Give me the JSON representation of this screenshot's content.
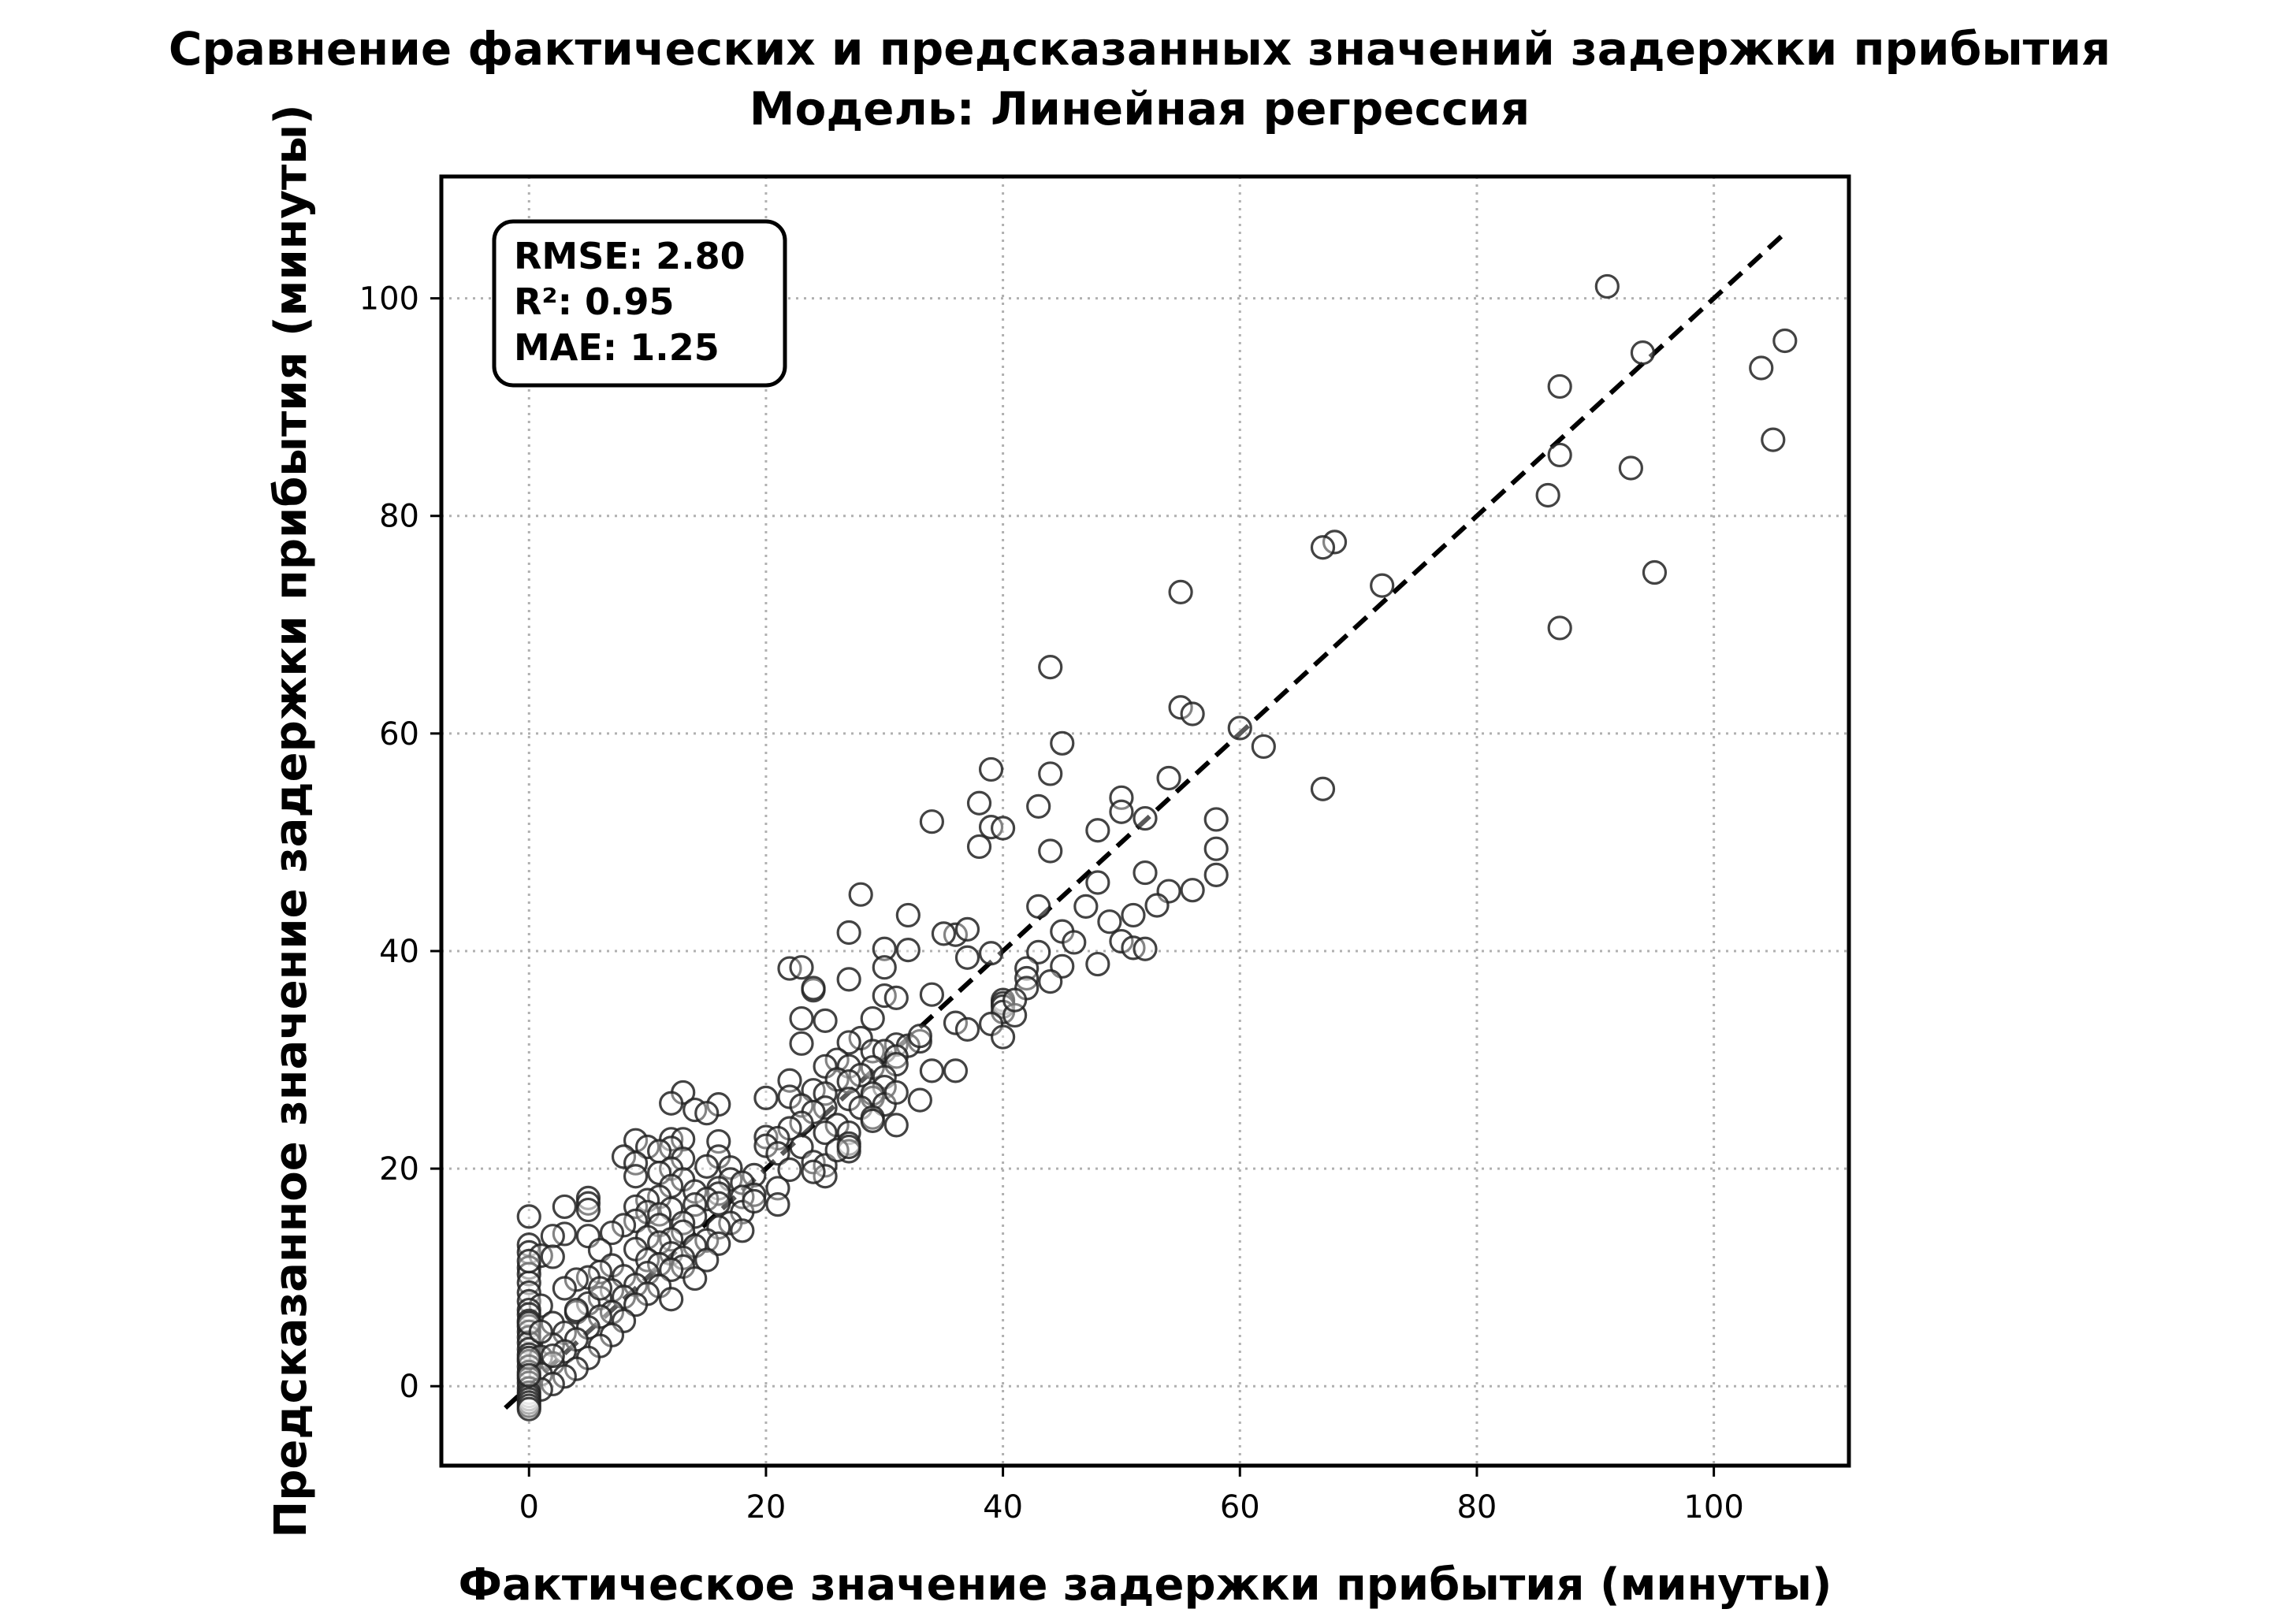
{
  "chart_data": {
    "type": "scatter",
    "title": "Сравнение фактических и предсказанных значений задержки прибытия",
    "subtitle": "Модель: Линейная регрессия",
    "xlabel": "Фактическое значение задержки прибытия (минуты)",
    "ylabel": "Предсказанное значение задержки прибытия (минуты)",
    "xlim": [
      -7.4,
      111.4
    ],
    "ylim": [
      -7.3,
      111.2
    ],
    "xticks": [
      0,
      20,
      40,
      60,
      80,
      100
    ],
    "yticks": [
      0,
      20,
      40,
      60,
      80,
      100
    ],
    "xtick_labels": [
      "0",
      "20",
      "40",
      "60",
      "80",
      "100"
    ],
    "ytick_labels": [
      "0",
      "20",
      "40",
      "60",
      "80",
      "100"
    ],
    "grid": true,
    "reference_line": {
      "style": "dashed",
      "color": "#000000",
      "x": [
        -2,
        106
      ],
      "y": [
        -2,
        106
      ]
    },
    "marker": {
      "shape": "circle",
      "fill": "none",
      "edge_color": "#222222"
    },
    "stats_box": {
      "position": "top-left",
      "lines": [
        "RMSE: 2.80",
        "R²: 0.95",
        "MAE: 1.25"
      ]
    },
    "points": [
      [
        91,
        101.1
      ],
      [
        94,
        95.0
      ],
      [
        106,
        96.1
      ],
      [
        104,
        93.6
      ],
      [
        87,
        91.9
      ],
      [
        87,
        85.6
      ],
      [
        105,
        87.0
      ],
      [
        93,
        84.4
      ],
      [
        86,
        81.9
      ],
      [
        95,
        74.8
      ],
      [
        68,
        77.6
      ],
      [
        67,
        77.1
      ],
      [
        72,
        73.6
      ],
      [
        55,
        73.0
      ],
      [
        87,
        69.7
      ],
      [
        44,
        66.1
      ],
      [
        55,
        62.4
      ],
      [
        56,
        61.8
      ],
      [
        60,
        60.5
      ],
      [
        62,
        58.8
      ],
      [
        45,
        59.1
      ],
      [
        39,
        56.7
      ],
      [
        44,
        56.3
      ],
      [
        54,
        55.9
      ],
      [
        67,
        54.9
      ],
      [
        38,
        53.6
      ],
      [
        43,
        53.3
      ],
      [
        50,
        54.1
      ],
      [
        50,
        52.8
      ],
      [
        52,
        52.2
      ],
      [
        58,
        52.1
      ],
      [
        34,
        51.9
      ],
      [
        39,
        51.4
      ],
      [
        40,
        51.3
      ],
      [
        48,
        51.1
      ],
      [
        44,
        49.2
      ],
      [
        38,
        49.6
      ],
      [
        58,
        49.4
      ],
      [
        52,
        47.2
      ],
      [
        58,
        47.0
      ],
      [
        48,
        46.3
      ],
      [
        54,
        45.5
      ],
      [
        56,
        45.6
      ],
      [
        28,
        45.2
      ],
      [
        53,
        44.2
      ],
      [
        43,
        44.1
      ],
      [
        47,
        44.1
      ],
      [
        51,
        43.3
      ],
      [
        32,
        43.3
      ],
      [
        49,
        42.7
      ],
      [
        27,
        41.7
      ],
      [
        36,
        41.5
      ],
      [
        37,
        42.0
      ],
      [
        45,
        41.8
      ],
      [
        46,
        40.8
      ],
      [
        50,
        40.9
      ],
      [
        51,
        40.3
      ],
      [
        52,
        40.2
      ],
      [
        30,
        40.2
      ],
      [
        32,
        40.1
      ],
      [
        39,
        39.8
      ],
      [
        43,
        39.9
      ],
      [
        37,
        39.4
      ],
      [
        45,
        38.6
      ],
      [
        48,
        38.8
      ],
      [
        42,
        38.4
      ],
      [
        22,
        38.4
      ],
      [
        23,
        38.5
      ],
      [
        30,
        38.5
      ],
      [
        42,
        37.5
      ],
      [
        27,
        37.4
      ],
      [
        44,
        37.2
      ],
      [
        24,
        36.4
      ],
      [
        24,
        36.6
      ],
      [
        42,
        36.6
      ],
      [
        30,
        35.9
      ],
      [
        34,
        36.0
      ],
      [
        31,
        35.7
      ],
      [
        40,
        35.5
      ],
      [
        40,
        35.2
      ],
      [
        40,
        34.9
      ],
      [
        40,
        34.4
      ],
      [
        41,
        34.1
      ],
      [
        29,
        33.8
      ],
      [
        23,
        33.8
      ],
      [
        25,
        33.6
      ],
      [
        36,
        33.4
      ],
      [
        39,
        33.3
      ],
      [
        37,
        32.8
      ],
      [
        40,
        32.1
      ],
      [
        28,
        32.0
      ],
      [
        33,
        31.7
      ],
      [
        23,
        31.5
      ],
      [
        27,
        31.6
      ],
      [
        31,
        31.4
      ],
      [
        32,
        31.3
      ],
      [
        29,
        30.8
      ],
      [
        30,
        30.8
      ],
      [
        31,
        30.3
      ],
      [
        26,
        30.0
      ],
      [
        27,
        29.4
      ],
      [
        31,
        29.6
      ],
      [
        25,
        29.4
      ],
      [
        29,
        29.3
      ],
      [
        34,
        29.0
      ],
      [
        36,
        29.0
      ],
      [
        28,
        28.6
      ],
      [
        30,
        28.4
      ],
      [
        22,
        28.1
      ],
      [
        26,
        28.2
      ],
      [
        27,
        28.0
      ],
      [
        30,
        27.5
      ],
      [
        13,
        27.0
      ],
      [
        24,
        27.2
      ],
      [
        22,
        26.6
      ],
      [
        25,
        26.9
      ],
      [
        20,
        26.5
      ],
      [
        29,
        26.5
      ],
      [
        29,
        26.9
      ],
      [
        33,
        26.3
      ],
      [
        27,
        26.4
      ],
      [
        12,
        26.0
      ],
      [
        16,
        25.9
      ],
      [
        30,
        25.9
      ],
      [
        23,
        25.8
      ],
      [
        25,
        25.6
      ],
      [
        28,
        25.6
      ],
      [
        14,
        25.4
      ],
      [
        15,
        25.1
      ],
      [
        24,
        25.2
      ],
      [
        29,
        24.7
      ],
      [
        29,
        24.4
      ],
      [
        31,
        24.0
      ],
      [
        23,
        24.2
      ],
      [
        26,
        24.0
      ],
      [
        22,
        23.7
      ],
      [
        25,
        23.3
      ],
      [
        27,
        23.3
      ],
      [
        20,
        22.9
      ],
      [
        21,
        22.8
      ],
      [
        12,
        22.7
      ],
      [
        9,
        22.6
      ],
      [
        13,
        22.7
      ],
      [
        16,
        22.5
      ],
      [
        20,
        22.1
      ],
      [
        27,
        22.3
      ],
      [
        10,
        22.0
      ],
      [
        12,
        21.9
      ],
      [
        23,
        22.0
      ],
      [
        11,
        21.6
      ],
      [
        27,
        21.6
      ],
      [
        21,
        21.4
      ],
      [
        8,
        21.1
      ],
      [
        16,
        21.1
      ],
      [
        13,
        20.9
      ],
      [
        24,
        20.6
      ],
      [
        25,
        20.3
      ],
      [
        9,
        20.5
      ],
      [
        12,
        20.0
      ],
      [
        15,
        20.2
      ],
      [
        17,
        20.1
      ],
      [
        11,
        19.6
      ],
      [
        22,
        19.9
      ],
      [
        19,
        19.4
      ],
      [
        25,
        19.3
      ],
      [
        9,
        19.3
      ],
      [
        13,
        19.0
      ],
      [
        17,
        19.0
      ],
      [
        21,
        18.2
      ],
      [
        18,
        18.7
      ],
      [
        12,
        18.4
      ],
      [
        16,
        18.2
      ],
      [
        21,
        16.7
      ],
      [
        14,
        17.9
      ],
      [
        16,
        17.7
      ],
      [
        19,
        17.6
      ],
      [
        11,
        17.4
      ],
      [
        15,
        17.2
      ],
      [
        18,
        17.4
      ],
      [
        5,
        17.3
      ],
      [
        10,
        17.1
      ],
      [
        5,
        16.8
      ],
      [
        14,
        16.7
      ],
      [
        16,
        16.8
      ],
      [
        3,
        16.5
      ],
      [
        9,
        16.5
      ],
      [
        12,
        16.3
      ],
      [
        5,
        16.2
      ],
      [
        10,
        16.0
      ],
      [
        18,
        16.0
      ],
      [
        0,
        15.6
      ],
      [
        11,
        15.8
      ],
      [
        14,
        15.6
      ],
      [
        9,
        15.2
      ],
      [
        13,
        15.0
      ],
      [
        17,
        15.0
      ],
      [
        8,
        14.8
      ],
      [
        11,
        14.8
      ],
      [
        16,
        14.6
      ],
      [
        18,
        14.3
      ],
      [
        13,
        14.2
      ],
      [
        7,
        14.1
      ],
      [
        3,
        14.0
      ],
      [
        2,
        13.8
      ],
      [
        5,
        13.8
      ],
      [
        10,
        13.7
      ],
      [
        12,
        13.5
      ],
      [
        15,
        13.4
      ],
      [
        11,
        13.2
      ],
      [
        16,
        13.1
      ],
      [
        0,
        13.0
      ],
      [
        14,
        12.9
      ],
      [
        9,
        12.6
      ],
      [
        6,
        12.5
      ],
      [
        0,
        12.3
      ],
      [
        12,
        12.2
      ],
      [
        1,
        12.0
      ],
      [
        2,
        11.9
      ],
      [
        13,
        11.8
      ],
      [
        10,
        11.6
      ],
      [
        15,
        11.6
      ],
      [
        11,
        11.2
      ],
      [
        7,
        11.1
      ],
      [
        13,
        11.0
      ],
      [
        0,
        10.9
      ],
      [
        12,
        10.7
      ],
      [
        6,
        10.5
      ],
      [
        10,
        10.4
      ],
      [
        0,
        10.3
      ],
      [
        8,
        10.1
      ],
      [
        5,
        10.0
      ],
      [
        14,
        9.9
      ],
      [
        4,
        9.8
      ],
      [
        0,
        9.5
      ],
      [
        9,
        9.3
      ],
      [
        11,
        9.2
      ],
      [
        3,
        9.0
      ],
      [
        7,
        8.8
      ],
      [
        0,
        8.6
      ],
      [
        10,
        8.5
      ],
      [
        8,
        8.2
      ],
      [
        6,
        8.1
      ],
      [
        12,
        8.0
      ],
      [
        0,
        7.8
      ],
      [
        5,
        7.6
      ],
      [
        9,
        7.5
      ],
      [
        1,
        7.4
      ],
      [
        0,
        7.0
      ],
      [
        7,
        6.8
      ],
      [
        4,
        6.8
      ],
      [
        0,
        6.6
      ],
      [
        6,
        6.4
      ],
      [
        0,
        6.0
      ],
      [
        8,
        6.0
      ],
      [
        2,
        5.8
      ],
      [
        0,
        5.5
      ],
      [
        5,
        5.4
      ],
      [
        0,
        5.0
      ],
      [
        3,
        4.9
      ],
      [
        7,
        4.7
      ],
      [
        0,
        4.5
      ],
      [
        4,
        4.3
      ],
      [
        0,
        4.0
      ],
      [
        2,
        3.8
      ],
      [
        6,
        3.7
      ],
      [
        0,
        3.4
      ],
      [
        3,
        3.2
      ],
      [
        0,
        2.9
      ],
      [
        1,
        2.7
      ],
      [
        5,
        2.6
      ],
      [
        0,
        2.3
      ],
      [
        2,
        2.1
      ],
      [
        0,
        1.8
      ],
      [
        4,
        1.6
      ],
      [
        0,
        1.3
      ],
      [
        1,
        1.1
      ],
      [
        3,
        0.9
      ],
      [
        0,
        0.7
      ],
      [
        0,
        0.3
      ],
      [
        2,
        0.2
      ],
      [
        0,
        -0.2
      ],
      [
        1,
        -0.3
      ],
      [
        0,
        -0.6
      ],
      [
        0,
        -0.9
      ],
      [
        0,
        -1.2
      ],
      [
        0,
        -1.5
      ],
      [
        0,
        -1.8
      ],
      [
        0,
        -2.1
      ],
      [
        0,
        2.6
      ],
      [
        0,
        1.0
      ],
      [
        0,
        5.8
      ],
      [
        0,
        11.5
      ],
      [
        1,
        5.0
      ],
      [
        2,
        2.8
      ],
      [
        4,
        7.0
      ],
      [
        6,
        9.0
      ],
      [
        35,
        41.6
      ],
      [
        26,
        21.7
      ],
      [
        27,
        22.0
      ],
      [
        19,
        17.0
      ],
      [
        41,
        35.5
      ],
      [
        33,
        32.2
      ],
      [
        24,
        19.7
      ],
      [
        31,
        27.0
      ]
    ]
  }
}
